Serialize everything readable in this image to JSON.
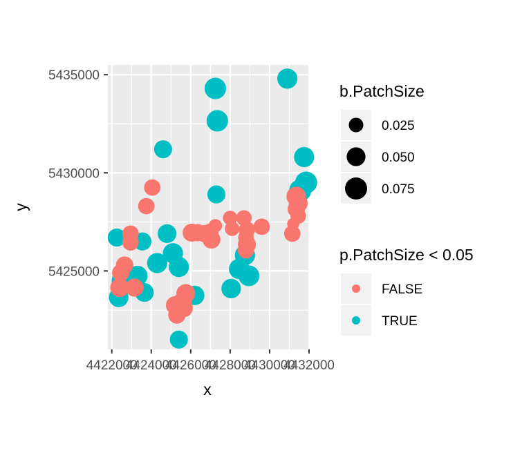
{
  "chart_data": {
    "type": "scatter",
    "xlabel": "x",
    "ylabel": "y",
    "xlim": [
      4421800,
      4432000
    ],
    "ylim": [
      5421000,
      5435500
    ],
    "x_ticks": [
      4422000,
      4424000,
      4426000,
      4428000,
      4430000,
      4432000
    ],
    "x_tick_labels": [
      "4422000",
      "4424000",
      "4426000",
      "4428000",
      "4430000",
      "4432000"
    ],
    "y_ticks": [
      5425000,
      5430000,
      5435000
    ],
    "y_tick_labels": [
      "5425000",
      "5430000",
      "5435000"
    ],
    "grid": true,
    "legend_position": "right",
    "size_legend": {
      "title": "b.PatchSize",
      "entries": [
        {
          "label": "0.025",
          "value": 0.025
        },
        {
          "label": "0.050",
          "value": 0.05
        },
        {
          "label": "0.075",
          "value": 0.075
        }
      ]
    },
    "color_legend": {
      "title": "p.PatchSize < 0.05",
      "entries": [
        {
          "label": "FALSE",
          "color": "#F8766D"
        },
        {
          "label": "TRUE",
          "color": "#00BFC4"
        }
      ]
    },
    "points": [
      {
        "x": 4430900,
        "y": 5434800,
        "size": 0.06,
        "group": "TRUE"
      },
      {
        "x": 4427250,
        "y": 5434300,
        "size": 0.07,
        "group": "TRUE"
      },
      {
        "x": 4427350,
        "y": 5432650,
        "size": 0.07,
        "group": "TRUE"
      },
      {
        "x": 4424600,
        "y": 5431200,
        "size": 0.045,
        "group": "TRUE"
      },
      {
        "x": 4431750,
        "y": 5430800,
        "size": 0.06,
        "group": "TRUE"
      },
      {
        "x": 4431850,
        "y": 5429500,
        "size": 0.075,
        "group": "TRUE"
      },
      {
        "x": 4431550,
        "y": 5429100,
        "size": 0.075,
        "group": "TRUE"
      },
      {
        "x": 4427300,
        "y": 5428900,
        "size": 0.045,
        "group": "TRUE"
      },
      {
        "x": 4422250,
        "y": 5426700,
        "size": 0.045,
        "group": "TRUE"
      },
      {
        "x": 4424800,
        "y": 5426900,
        "size": 0.05,
        "group": "TRUE"
      },
      {
        "x": 4423550,
        "y": 5426500,
        "size": 0.045,
        "group": "TRUE"
      },
      {
        "x": 4425100,
        "y": 5425900,
        "size": 0.06,
        "group": "TRUE"
      },
      {
        "x": 4424300,
        "y": 5425400,
        "size": 0.06,
        "group": "TRUE"
      },
      {
        "x": 4425400,
        "y": 5425200,
        "size": 0.06,
        "group": "TRUE"
      },
      {
        "x": 4428750,
        "y": 5425800,
        "size": 0.06,
        "group": "TRUE"
      },
      {
        "x": 4428450,
        "y": 5425100,
        "size": 0.06,
        "group": "TRUE"
      },
      {
        "x": 4428950,
        "y": 5424750,
        "size": 0.065,
        "group": "TRUE"
      },
      {
        "x": 4423300,
        "y": 5424750,
        "size": 0.06,
        "group": "TRUE"
      },
      {
        "x": 4422500,
        "y": 5424500,
        "size": 0.06,
        "group": "TRUE"
      },
      {
        "x": 4423650,
        "y": 5423900,
        "size": 0.05,
        "group": "TRUE"
      },
      {
        "x": 4422350,
        "y": 5423650,
        "size": 0.055,
        "group": "TRUE"
      },
      {
        "x": 4426200,
        "y": 5423750,
        "size": 0.055,
        "group": "TRUE"
      },
      {
        "x": 4428050,
        "y": 5424100,
        "size": 0.055,
        "group": "TRUE"
      },
      {
        "x": 4425400,
        "y": 5421500,
        "size": 0.045,
        "group": "TRUE"
      },
      {
        "x": 4424050,
        "y": 5429250,
        "size": 0.035,
        "group": "FALSE"
      },
      {
        "x": 4423750,
        "y": 5428300,
        "size": 0.035,
        "group": "FALSE"
      },
      {
        "x": 4431350,
        "y": 5428800,
        "size": 0.055,
        "group": "FALSE"
      },
      {
        "x": 4431450,
        "y": 5428450,
        "size": 0.05,
        "group": "FALSE"
      },
      {
        "x": 4431350,
        "y": 5428150,
        "size": 0.04,
        "group": "FALSE"
      },
      {
        "x": 4431450,
        "y": 5427800,
        "size": 0.03,
        "group": "FALSE"
      },
      {
        "x": 4431200,
        "y": 5427400,
        "size": 0.015,
        "group": "FALSE"
      },
      {
        "x": 4431150,
        "y": 5426900,
        "size": 0.035,
        "group": "FALSE"
      },
      {
        "x": 4422950,
        "y": 5426900,
        "size": 0.035,
        "group": "FALSE"
      },
      {
        "x": 4422950,
        "y": 5426450,
        "size": 0.035,
        "group": "FALSE"
      },
      {
        "x": 4426050,
        "y": 5426950,
        "size": 0.045,
        "group": "FALSE"
      },
      {
        "x": 4426350,
        "y": 5426950,
        "size": 0.04,
        "group": "FALSE"
      },
      {
        "x": 4426700,
        "y": 5426900,
        "size": 0.04,
        "group": "FALSE"
      },
      {
        "x": 4427000,
        "y": 5427000,
        "size": 0.035,
        "group": "FALSE"
      },
      {
        "x": 4427250,
        "y": 5427300,
        "size": 0.02,
        "group": "FALSE"
      },
      {
        "x": 4427050,
        "y": 5426600,
        "size": 0.045,
        "group": "FALSE"
      },
      {
        "x": 4428000,
        "y": 5427700,
        "size": 0.025,
        "group": "FALSE"
      },
      {
        "x": 4428100,
        "y": 5427150,
        "size": 0.025,
        "group": "FALSE"
      },
      {
        "x": 4428700,
        "y": 5427700,
        "size": 0.03,
        "group": "FALSE"
      },
      {
        "x": 4428850,
        "y": 5427100,
        "size": 0.035,
        "group": "FALSE"
      },
      {
        "x": 4428800,
        "y": 5426700,
        "size": 0.03,
        "group": "FALSE"
      },
      {
        "x": 4428850,
        "y": 5426350,
        "size": 0.045,
        "group": "FALSE"
      },
      {
        "x": 4428800,
        "y": 5426050,
        "size": 0.035,
        "group": "FALSE"
      },
      {
        "x": 4429600,
        "y": 5427250,
        "size": 0.035,
        "group": "FALSE"
      },
      {
        "x": 4422650,
        "y": 5425300,
        "size": 0.04,
        "group": "FALSE"
      },
      {
        "x": 4422450,
        "y": 5424900,
        "size": 0.04,
        "group": "FALSE"
      },
      {
        "x": 4422400,
        "y": 5424150,
        "size": 0.05,
        "group": "FALSE"
      },
      {
        "x": 4423150,
        "y": 5424150,
        "size": 0.045,
        "group": "FALSE"
      },
      {
        "x": 4425750,
        "y": 5423850,
        "size": 0.05,
        "group": "FALSE"
      },
      {
        "x": 4425600,
        "y": 5423450,
        "size": 0.05,
        "group": "FALSE"
      },
      {
        "x": 4425200,
        "y": 5423250,
        "size": 0.045,
        "group": "FALSE"
      },
      {
        "x": 4425650,
        "y": 5423100,
        "size": 0.045,
        "group": "FALSE"
      },
      {
        "x": 4425300,
        "y": 5422750,
        "size": 0.04,
        "group": "FALSE"
      }
    ]
  }
}
